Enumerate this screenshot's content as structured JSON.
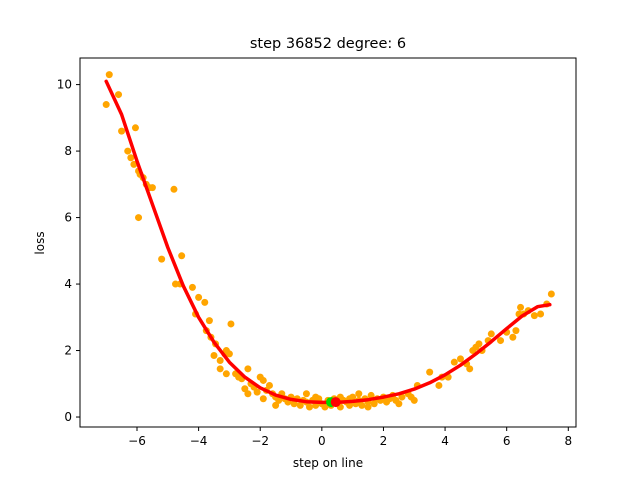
{
  "chart_data": {
    "type": "scatter",
    "title": "step 36852   degree: 6",
    "xlabel": "step on line",
    "ylabel": "loss",
    "xlim": [
      -7.85,
      8.25
    ],
    "ylim": [
      -0.3,
      10.8
    ],
    "xticks": [
      -6,
      -4,
      -2,
      0,
      2,
      4,
      6,
      8
    ],
    "yticks": [
      0,
      2,
      4,
      6,
      8,
      10
    ],
    "grid": false,
    "colors": {
      "points": "#ffa500",
      "fit": "#ff0000",
      "current": "#00dd00",
      "minimum": "#ff0000"
    },
    "scatter": [
      [
        -7.0,
        9.4
      ],
      [
        -6.9,
        10.3
      ],
      [
        -6.6,
        9.7
      ],
      [
        -6.5,
        8.6
      ],
      [
        -6.3,
        8.0
      ],
      [
        -6.2,
        7.8
      ],
      [
        -6.1,
        7.6
      ],
      [
        -6.05,
        8.7
      ],
      [
        -5.95,
        7.4
      ],
      [
        -5.9,
        7.3
      ],
      [
        -5.8,
        7.2
      ],
      [
        -5.7,
        7.0
      ],
      [
        -5.6,
        6.9
      ],
      [
        -5.5,
        6.9
      ],
      [
        -5.95,
        6.0
      ],
      [
        -5.2,
        4.75
      ],
      [
        -4.8,
        6.85
      ],
      [
        -4.75,
        4.0
      ],
      [
        -4.6,
        4.0
      ],
      [
        -4.55,
        4.85
      ],
      [
        -4.2,
        3.9
      ],
      [
        -4.1,
        3.1
      ],
      [
        -4.0,
        3.6
      ],
      [
        -3.8,
        3.45
      ],
      [
        -3.75,
        2.6
      ],
      [
        -3.65,
        2.9
      ],
      [
        -3.6,
        2.4
      ],
      [
        -3.5,
        1.85
      ],
      [
        -3.45,
        2.2
      ],
      [
        -3.3,
        1.7
      ],
      [
        -3.15,
        1.9
      ],
      [
        -3.1,
        2.0
      ],
      [
        -3.0,
        1.9
      ],
      [
        -2.95,
        2.8
      ],
      [
        -3.3,
        1.45
      ],
      [
        -3.1,
        1.3
      ],
      [
        -2.8,
        1.3
      ],
      [
        -2.7,
        1.2
      ],
      [
        -2.6,
        1.15
      ],
      [
        -2.5,
        0.85
      ],
      [
        -2.4,
        1.45
      ],
      [
        -2.3,
        1.0
      ],
      [
        -2.2,
        0.9
      ],
      [
        -2.1,
        0.75
      ],
      [
        -2.0,
        1.2
      ],
      [
        -1.9,
        1.1
      ],
      [
        -1.8,
        0.8
      ],
      [
        -1.7,
        0.95
      ],
      [
        -1.6,
        0.7
      ],
      [
        -1.5,
        0.6
      ],
      [
        -1.4,
        0.5
      ],
      [
        -1.3,
        0.7
      ],
      [
        -1.2,
        0.55
      ],
      [
        -1.1,
        0.45
      ],
      [
        -1.0,
        0.6
      ],
      [
        -0.9,
        0.4
      ],
      [
        -0.8,
        0.55
      ],
      [
        -0.7,
        0.35
      ],
      [
        -0.6,
        0.5
      ],
      [
        -0.5,
        0.45
      ],
      [
        -0.4,
        0.3
      ],
      [
        -0.3,
        0.5
      ],
      [
        -0.2,
        0.35
      ],
      [
        -0.1,
        0.55
      ],
      [
        0.0,
        0.4
      ],
      [
        0.1,
        0.3
      ],
      [
        0.2,
        0.5
      ],
      [
        0.3,
        0.35
      ],
      [
        0.4,
        0.55
      ],
      [
        0.5,
        0.4
      ],
      [
        0.6,
        0.3
      ],
      [
        0.7,
        0.5
      ],
      [
        0.8,
        0.45
      ],
      [
        0.9,
        0.35
      ],
      [
        1.0,
        0.6
      ],
      [
        1.1,
        0.4
      ],
      [
        1.2,
        0.5
      ],
      [
        1.3,
        0.35
      ],
      [
        1.4,
        0.55
      ],
      [
        1.5,
        0.45
      ],
      [
        1.6,
        0.65
      ],
      [
        1.7,
        0.4
      ],
      [
        1.8,
        0.55
      ],
      [
        1.9,
        0.5
      ],
      [
        2.0,
        0.6
      ],
      [
        2.1,
        0.45
      ],
      [
        2.2,
        0.55
      ],
      [
        2.3,
        0.65
      ],
      [
        2.4,
        0.5
      ],
      [
        2.6,
        0.6
      ],
      [
        2.8,
        0.7
      ],
      [
        2.9,
        0.6
      ],
      [
        3.0,
        0.5
      ],
      [
        3.1,
        0.95
      ],
      [
        3.5,
        1.35
      ],
      [
        3.8,
        0.95
      ],
      [
        3.9,
        1.2
      ],
      [
        4.1,
        1.2
      ],
      [
        4.3,
        1.65
      ],
      [
        4.5,
        1.75
      ],
      [
        4.7,
        1.6
      ],
      [
        4.8,
        1.45
      ],
      [
        4.9,
        2.0
      ],
      [
        5.0,
        2.1
      ],
      [
        5.1,
        2.2
      ],
      [
        5.2,
        2.0
      ],
      [
        5.4,
        2.3
      ],
      [
        5.5,
        2.5
      ],
      [
        5.8,
        2.3
      ],
      [
        6.0,
        2.55
      ],
      [
        6.2,
        2.4
      ],
      [
        6.3,
        2.6
      ],
      [
        6.4,
        3.1
      ],
      [
        6.45,
        3.3
      ],
      [
        6.55,
        3.1
      ],
      [
        6.7,
        3.2
      ],
      [
        6.9,
        3.05
      ],
      [
        7.1,
        3.1
      ],
      [
        7.3,
        3.4
      ],
      [
        7.45,
        3.7
      ],
      [
        -1.5,
        0.35
      ],
      [
        -0.5,
        0.7
      ],
      [
        0.6,
        0.6
      ],
      [
        1.5,
        0.3
      ],
      [
        2.5,
        0.4
      ],
      [
        -1.9,
        0.55
      ],
      [
        -2.4,
        0.7
      ],
      [
        1.2,
        0.7
      ],
      [
        0.9,
        0.55
      ],
      [
        -0.2,
        0.6
      ]
    ],
    "fit_curve": [
      [
        -7.0,
        10.1
      ],
      [
        -6.5,
        9.1
      ],
      [
        -6.0,
        7.7
      ],
      [
        -5.5,
        6.4
      ],
      [
        -5.0,
        5.1
      ],
      [
        -4.5,
        3.95
      ],
      [
        -4.0,
        3.0
      ],
      [
        -3.5,
        2.25
      ],
      [
        -3.0,
        1.65
      ],
      [
        -2.5,
        1.2
      ],
      [
        -2.0,
        0.88
      ],
      [
        -1.5,
        0.66
      ],
      [
        -1.0,
        0.53
      ],
      [
        -0.5,
        0.46
      ],
      [
        0.0,
        0.44
      ],
      [
        0.5,
        0.44
      ],
      [
        1.0,
        0.47
      ],
      [
        1.5,
        0.52
      ],
      [
        2.0,
        0.6
      ],
      [
        2.5,
        0.7
      ],
      [
        3.0,
        0.84
      ],
      [
        3.5,
        1.03
      ],
      [
        4.0,
        1.27
      ],
      [
        4.5,
        1.56
      ],
      [
        5.0,
        1.9
      ],
      [
        5.5,
        2.27
      ],
      [
        6.0,
        2.66
      ],
      [
        6.5,
        3.04
      ],
      [
        7.0,
        3.32
      ],
      [
        7.4,
        3.38
      ]
    ],
    "current_point": [
      0.3,
      0.45
    ],
    "minimum_point": [
      0.45,
      0.45
    ]
  }
}
